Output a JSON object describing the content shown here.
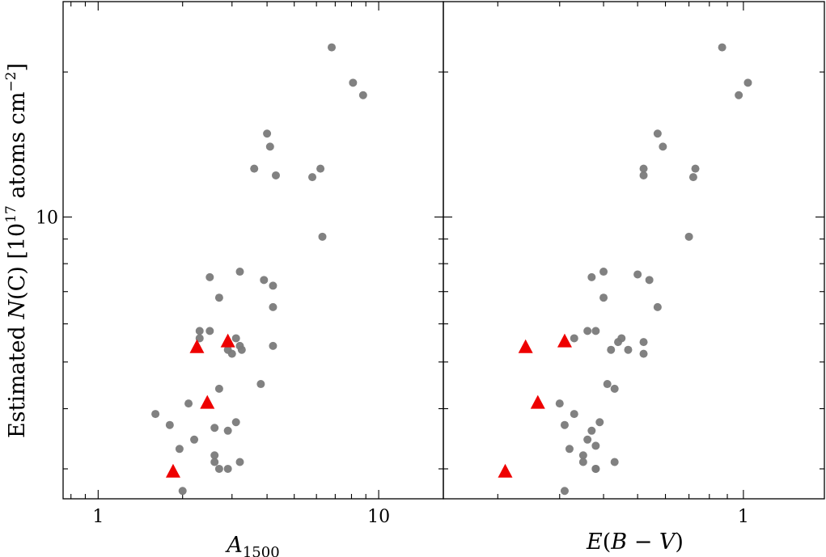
{
  "chart_data": [
    {
      "type": "scatter",
      "panel": "left",
      "xlabel": "A_1500",
      "xlabel_main": "A",
      "xlabel_sub": "1500",
      "ylabel": "Estimated N(C) [10^17 atoms cm^-2]",
      "ylabel_parts": {
        "pre": "Estimated ",
        "sym": "N",
        "mid": "(C) [10",
        "exp1": "17",
        "post": " atoms cm",
        "exp2": "−2",
        "end": "]"
      },
      "x_scale": "log",
      "y_scale": "log",
      "xlim": [
        0.75,
        17
      ],
      "ylim": [
        2.6,
        28
      ],
      "x_ticks": [
        {
          "value": 1,
          "label": "1"
        },
        {
          "value": 10,
          "label": "10"
        }
      ],
      "y_ticks": [
        {
          "value": 10,
          "label": "10"
        }
      ],
      "grid": false,
      "series": [
        {
          "color": "#7a7a7a",
          "marker": "circle",
          "points": [
            [
              6.8,
              22.5
            ],
            [
              8.1,
              19.0
            ],
            [
              8.8,
              17.9
            ],
            [
              4.0,
              14.9
            ],
            [
              4.1,
              14.0
            ],
            [
              3.6,
              12.6
            ],
            [
              4.3,
              12.2
            ],
            [
              5.8,
              12.1
            ],
            [
              6.2,
              12.6
            ],
            [
              6.3,
              9.1
            ],
            [
              2.5,
              7.5
            ],
            [
              3.2,
              7.7
            ],
            [
              3.9,
              7.4
            ],
            [
              4.2,
              7.2
            ],
            [
              2.7,
              6.8
            ],
            [
              4.2,
              6.5
            ],
            [
              2.3,
              5.8
            ],
            [
              2.5,
              5.8
            ],
            [
              2.3,
              5.6
            ],
            [
              3.1,
              5.6
            ],
            [
              3.2,
              5.4
            ],
            [
              2.9,
              5.3
            ],
            [
              3.25,
              5.3
            ],
            [
              3.0,
              5.2
            ],
            [
              4.2,
              5.4
            ],
            [
              2.7,
              4.4
            ],
            [
              3.8,
              4.5
            ],
            [
              2.1,
              4.1
            ],
            [
              1.6,
              3.9
            ],
            [
              1.8,
              3.7
            ],
            [
              3.1,
              3.75
            ],
            [
              2.9,
              3.6
            ],
            [
              2.2,
              3.45
            ],
            [
              1.95,
              3.3
            ],
            [
              2.6,
              3.65
            ],
            [
              2.6,
              3.2
            ],
            [
              2.6,
              3.1
            ],
            [
              3.2,
              3.1
            ],
            [
              2.7,
              3.0
            ],
            [
              2.9,
              3.0
            ],
            [
              2.0,
              2.7
            ]
          ]
        },
        {
          "color": "#ee0000",
          "marker": "triangle",
          "points": [
            [
              2.9,
              5.5
            ],
            [
              2.25,
              5.35
            ],
            [
              2.45,
              4.1
            ],
            [
              1.85,
              2.95
            ]
          ]
        }
      ]
    },
    {
      "type": "scatter",
      "panel": "right",
      "xlabel": "E(B − V)",
      "xlabel_parts": {
        "a": "E",
        "b": "(",
        "c": "B",
        "d": " − ",
        "e": "V",
        "f": ")"
      },
      "x_scale": "log",
      "y_scale": "log",
      "xlim": [
        0.14,
        1.7
      ],
      "ylim": [
        2.6,
        28
      ],
      "x_ticks": [
        {
          "value": 1,
          "label": "1"
        }
      ],
      "grid": false,
      "series": [
        {
          "color": "#7a7a7a",
          "marker": "circle",
          "points": [
            [
              0.87,
              22.5
            ],
            [
              1.03,
              19.0
            ],
            [
              0.97,
              17.9
            ],
            [
              0.57,
              14.9
            ],
            [
              0.59,
              14.0
            ],
            [
              0.52,
              12.6
            ],
            [
              0.52,
              12.2
            ],
            [
              0.72,
              12.1
            ],
            [
              0.73,
              12.6
            ],
            [
              0.7,
              9.1
            ],
            [
              0.37,
              7.5
            ],
            [
              0.4,
              7.7
            ],
            [
              0.5,
              7.6
            ],
            [
              0.54,
              7.4
            ],
            [
              0.4,
              6.8
            ],
            [
              0.57,
              6.5
            ],
            [
              0.36,
              5.8
            ],
            [
              0.38,
              5.8
            ],
            [
              0.33,
              5.6
            ],
            [
              0.45,
              5.6
            ],
            [
              0.44,
              5.5
            ],
            [
              0.52,
              5.5
            ],
            [
              0.42,
              5.3
            ],
            [
              0.47,
              5.3
            ],
            [
              0.52,
              5.2
            ],
            [
              0.41,
              4.5
            ],
            [
              0.43,
              4.4
            ],
            [
              0.3,
              4.1
            ],
            [
              0.33,
              3.9
            ],
            [
              0.31,
              3.7
            ],
            [
              0.39,
              3.75
            ],
            [
              0.37,
              3.6
            ],
            [
              0.36,
              3.45
            ],
            [
              0.32,
              3.3
            ],
            [
              0.38,
              3.35
            ],
            [
              0.35,
              3.2
            ],
            [
              0.35,
              3.1
            ],
            [
              0.43,
              3.1
            ],
            [
              0.38,
              3.0
            ],
            [
              0.38,
              3.0
            ],
            [
              0.31,
              2.7
            ]
          ]
        },
        {
          "color": "#ee0000",
          "marker": "triangle",
          "points": [
            [
              0.31,
              5.5
            ],
            [
              0.24,
              5.35
            ],
            [
              0.26,
              4.1
            ],
            [
              0.21,
              2.95
            ]
          ]
        }
      ]
    }
  ]
}
